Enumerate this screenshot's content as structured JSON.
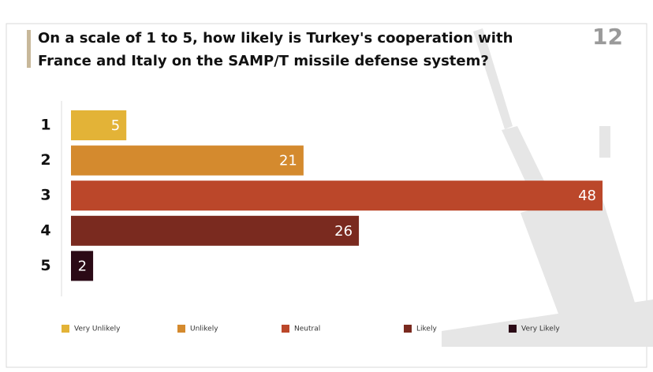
{
  "page_number": 12,
  "chart_data": {
    "type": "bar",
    "orientation": "horizontal",
    "title": "On a scale of 1 to 5, how likely is Turkey's cooperation with France and Italy on the SAMP/T missile defense system?",
    "categories": [
      "1",
      "2",
      "3",
      "4",
      "5"
    ],
    "values": [
      5,
      21,
      48,
      26,
      2
    ],
    "colors": [
      "#e3b337",
      "#d48a2e",
      "#bb472a",
      "#7a2a1f",
      "#2b0a16"
    ],
    "legend": [
      "Very Unlikely",
      "Unlikely",
      "Neutral",
      "Likely",
      "Very Likely"
    ]
  }
}
